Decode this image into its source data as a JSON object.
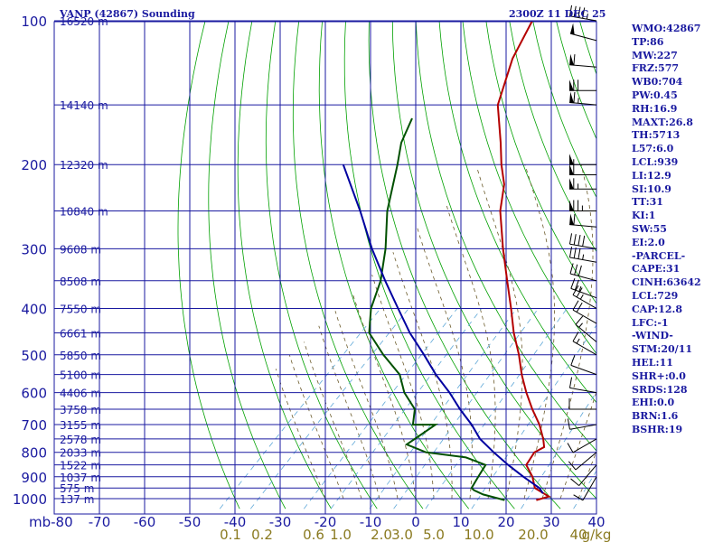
{
  "header": {
    "title": "VANP (42867) Sounding",
    "time": "2300Z 11 DEC 25"
  },
  "stats": [
    "WMO:42867",
    "TP:86",
    "MW:227",
    "FRZ:577",
    "WB0:704",
    "PW:0.45",
    "RH:16.9",
    "MAXT:26.8",
    "TH:5713",
    "L57:6.0",
    "LCL:939",
    "LI:12.9",
    "SI:10.9",
    "TT:31",
    "KI:1",
    "SW:55",
    "EI:2.0",
    "-PARCEL-",
    "CAPE:31",
    "CINH:63642",
    "LCL:729",
    "CAP:12.8",
    "LFC:-1",
    "-WIND-",
    "STM:20/11",
    "HEL:11",
    "SHR+:0.0",
    "SRDS:128",
    "EHI:0.0",
    "BRN:1.6",
    "BSHR:19"
  ],
  "colors": {
    "grid": "#1a1aa0",
    "temperature": "#b40000",
    "dewpoint": "#005000",
    "parcel": "#0000a0",
    "dry_adiabat": "#00a000",
    "moist_adiabat": "#6b5a2a",
    "mixing_ratio": "#5fa8d8",
    "axis_label": "#1a1aa0",
    "mixing_label": "#8a7a20"
  },
  "chart_data": {
    "type": "skew-t",
    "title": "VANP (42867) Sounding",
    "ylabel": "mb",
    "pressure_ticks": [
      100,
      200,
      300,
      400,
      500,
      600,
      700,
      800,
      900,
      1000
    ],
    "temp_ticks": [
      -80,
      -70,
      -60,
      -50,
      -40,
      -30,
      -20,
      -10,
      0,
      10,
      20,
      30,
      40
    ],
    "temp_tick_labels": [
      "mb-80",
      "-70",
      "-60",
      "-50",
      "-40",
      "-30",
      "-20",
      "-10",
      "0",
      "10",
      "20",
      "30",
      "40"
    ],
    "mixing_ratio_labels": [
      "0.1",
      "0.2",
      "0.6",
      "1.0",
      "2.0",
      "3.0",
      "5.0",
      "10.0",
      "20.0",
      "40",
      "g/kg"
    ],
    "height_labels": [
      {
        "p": 100,
        "label": "16520 m"
      },
      {
        "p": 150,
        "label": "14140 m"
      },
      {
        "p": 200,
        "label": "12320 m"
      },
      {
        "p": 250,
        "label": "10840 m"
      },
      {
        "p": 300,
        "label": "9608 m"
      },
      {
        "p": 350,
        "label": "8508 m"
      },
      {
        "p": 400,
        "label": "7550 m"
      },
      {
        "p": 450,
        "label": "6661 m"
      },
      {
        "p": 500,
        "label": "5850 m"
      },
      {
        "p": 550,
        "label": "5100 m"
      },
      {
        "p": 600,
        "label": "4406 m"
      },
      {
        "p": 650,
        "label": "3758 m"
      },
      {
        "p": 700,
        "label": "3155 m"
      },
      {
        "p": 750,
        "label": "2578 m"
      },
      {
        "p": 800,
        "label": "2033 m"
      },
      {
        "p": 850,
        "label": "1522 m"
      },
      {
        "p": 900,
        "label": "1037 m"
      },
      {
        "p": 950,
        "label": "575 m"
      },
      {
        "p": 1000,
        "label": "137 m"
      }
    ],
    "series": [
      {
        "name": "temperature",
        "points": [
          [
            1007,
            27
          ],
          [
            990,
            29
          ],
          [
            950,
            24
          ],
          [
            900,
            21
          ],
          [
            850,
            17
          ],
          [
            800,
            16
          ],
          [
            780,
            17
          ],
          [
            750,
            15
          ],
          [
            700,
            11
          ],
          [
            650,
            6
          ],
          [
            600,
            1
          ],
          [
            550,
            -4
          ],
          [
            500,
            -9
          ],
          [
            450,
            -15
          ],
          [
            400,
            -21
          ],
          [
            350,
            -28
          ],
          [
            300,
            -36
          ],
          [
            250,
            -45
          ],
          [
            220,
            -50
          ],
          [
            200,
            -55
          ],
          [
            180,
            -60
          ],
          [
            150,
            -69
          ],
          [
            120,
            -76
          ],
          [
            100,
            -80
          ]
        ]
      },
      {
        "name": "dewpoint",
        "points": [
          [
            1007,
            20
          ],
          [
            980,
            14
          ],
          [
            960,
            11
          ],
          [
            950,
            10
          ],
          [
            900,
            9
          ],
          [
            850,
            8
          ],
          [
            820,
            2
          ],
          [
            800,
            -8
          ],
          [
            770,
            -14
          ],
          [
            700,
            -12
          ],
          [
            700,
            -17
          ],
          [
            650,
            -20
          ],
          [
            600,
            -26
          ],
          [
            550,
            -31
          ],
          [
            500,
            -39
          ],
          [
            450,
            -47
          ],
          [
            400,
            -52
          ],
          [
            350,
            -56
          ],
          [
            300,
            -62
          ],
          [
            250,
            -70
          ],
          [
            200,
            -78
          ],
          [
            180,
            -82
          ],
          [
            160,
            -85
          ]
        ]
      },
      {
        "name": "parcel",
        "points": [
          [
            975,
            27
          ],
          [
            950,
            25
          ],
          [
            900,
            19
          ],
          [
            850,
            13
          ],
          [
            800,
            7
          ],
          [
            750,
            1
          ],
          [
            700,
            -4
          ],
          [
            650,
            -10
          ],
          [
            600,
            -16
          ],
          [
            550,
            -23
          ],
          [
            500,
            -30
          ],
          [
            450,
            -38
          ],
          [
            400,
            -46
          ],
          [
            350,
            -55
          ],
          [
            300,
            -65
          ],
          [
            250,
            -76
          ],
          [
            200,
            -90
          ]
        ]
      }
    ],
    "wind_barbs": [
      {
        "p": 100,
        "dir": 280,
        "spd": 45
      },
      {
        "p": 110,
        "dir": 285,
        "spd": 50
      },
      {
        "p": 125,
        "dir": 275,
        "spd": 60
      },
      {
        "p": 140,
        "dir": 270,
        "spd": 70
      },
      {
        "p": 150,
        "dir": 275,
        "spd": 65
      },
      {
        "p": 200,
        "dir": 270,
        "spd": 55
      },
      {
        "p": 210,
        "dir": 270,
        "spd": 60
      },
      {
        "p": 225,
        "dir": 270,
        "spd": 65
      },
      {
        "p": 250,
        "dir": 270,
        "spd": 75
      },
      {
        "p": 270,
        "dir": 275,
        "spd": 60
      },
      {
        "p": 300,
        "dir": 280,
        "spd": 40
      },
      {
        "p": 320,
        "dir": 280,
        "spd": 35
      },
      {
        "p": 350,
        "dir": 285,
        "spd": 30
      },
      {
        "p": 380,
        "dir": 290,
        "spd": 25
      },
      {
        "p": 400,
        "dir": 300,
        "spd": 25
      },
      {
        "p": 430,
        "dir": 300,
        "spd": 20
      },
      {
        "p": 470,
        "dir": 310,
        "spd": 15
      },
      {
        "p": 500,
        "dir": 300,
        "spd": 15
      },
      {
        "p": 550,
        "dir": 290,
        "spd": 10
      },
      {
        "p": 600,
        "dir": 280,
        "spd": 10
      },
      {
        "p": 650,
        "dir": 270,
        "spd": 10
      },
      {
        "p": 700,
        "dir": 260,
        "spd": 10
      },
      {
        "p": 750,
        "dir": 240,
        "spd": 10
      },
      {
        "p": 800,
        "dir": 230,
        "spd": 10
      },
      {
        "p": 850,
        "dir": 220,
        "spd": 10
      },
      {
        "p": 900,
        "dir": 210,
        "spd": 10
      }
    ]
  }
}
